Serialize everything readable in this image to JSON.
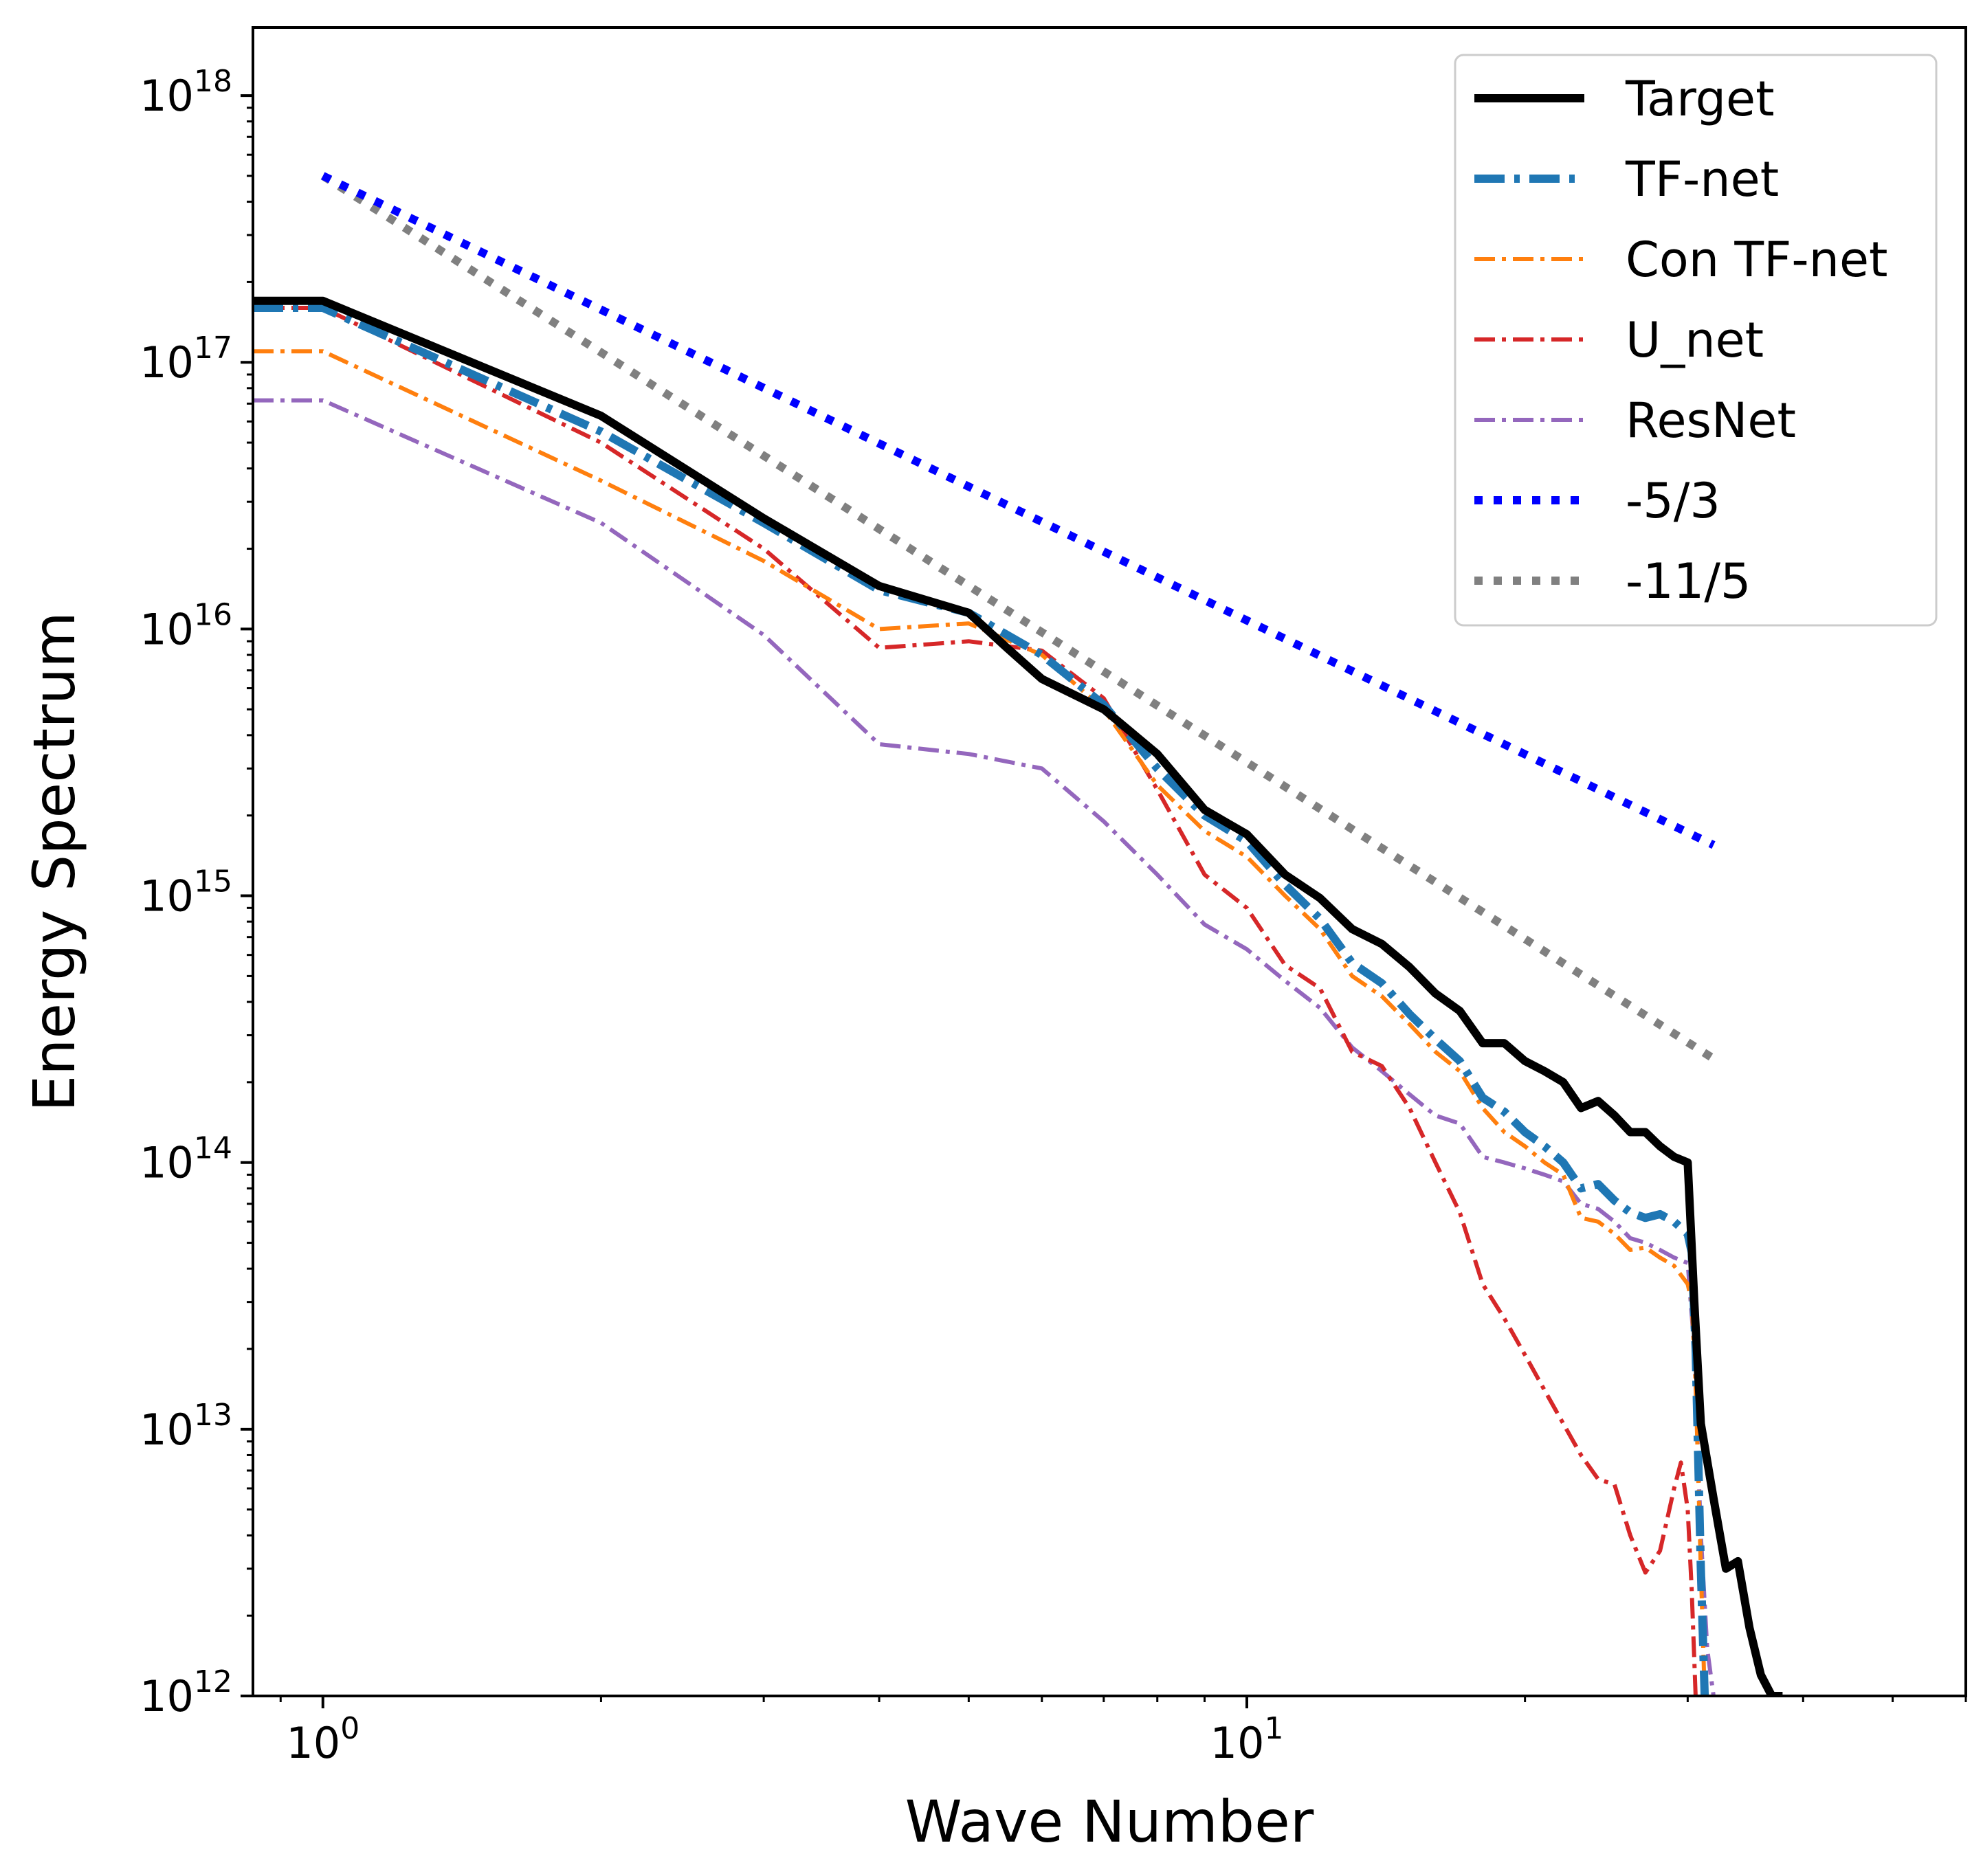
{
  "chart_data": {
    "type": "line",
    "title": "",
    "xlabel": "Wave Number",
    "ylabel": "Energy Spectrum",
    "xscale": "log",
    "yscale": "log",
    "xlim": [
      0.84,
      60
    ],
    "ylim": [
      1000000000000.0,
      1.8e+18
    ],
    "x_ticks": [
      {
        "value": 1,
        "base": "10",
        "exp": "0"
      },
      {
        "value": 10,
        "base": "10",
        "exp": "1"
      }
    ],
    "y_ticks": [
      {
        "value": 1000000000000.0,
        "base": "10",
        "exp": "12"
      },
      {
        "value": 10000000000000.0,
        "base": "10",
        "exp": "13"
      },
      {
        "value": 100000000000000.0,
        "base": "10",
        "exp": "14"
      },
      {
        "value": 1000000000000000.0,
        "base": "10",
        "exp": "15"
      },
      {
        "value": 1e+16,
        "base": "10",
        "exp": "16"
      },
      {
        "value": 1e+17,
        "base": "10",
        "exp": "17"
      },
      {
        "value": 1e+18,
        "base": "10",
        "exp": "18"
      }
    ],
    "legend_position": "top-right",
    "series": [
      {
        "name": "Target",
        "color": "#000000",
        "style": "solid",
        "weight": "thick",
        "x": [
          0.84,
          1,
          2,
          3,
          4,
          5,
          5.5,
          6,
          7,
          8,
          9,
          10,
          11,
          12,
          13,
          14,
          15,
          16,
          17,
          18,
          19,
          20,
          21,
          22,
          23,
          24,
          25,
          26,
          27,
          28,
          29,
          30,
          30.5,
          31,
          32,
          33,
          34,
          35,
          36,
          37,
          38
        ],
        "y": [
          1.7e+17,
          1.7e+17,
          6.3e+16,
          2.6e+16,
          1.45e+16,
          1.15e+16,
          8500000000000000.0,
          6500000000000000.0,
          5000000000000000.0,
          3400000000000000.0,
          2100000000000000.0,
          1700000000000000.0,
          1200000000000000.0,
          980000000000000.0,
          750000000000000.0,
          660000000000000.0,
          540000000000000.0,
          430000000000000.0,
          370000000000000.0,
          280000000000000.0,
          280000000000000.0,
          240000000000000.0,
          220000000000000.0,
          200000000000000.0,
          160000000000000.0,
          170000000000000.0,
          150000000000000.0,
          130000000000000.0,
          130000000000000.0,
          115000000000000.0,
          105000000000000.0,
          100000000000000.0,
          30000000000000.0,
          10500000000000.0,
          5500000000000.0,
          3000000000000.0,
          3200000000000.0,
          1800000000000.0,
          1200000000000.0,
          1000000000000.0,
          1000000000000.0
        ]
      },
      {
        "name": "TF-net",
        "color": "#1f77b4",
        "style": "dashdot",
        "weight": "thick",
        "x": [
          0.84,
          1,
          2,
          3,
          4,
          5,
          6,
          7,
          8,
          9,
          10,
          11,
          12,
          13,
          14,
          15,
          16,
          17,
          18,
          19,
          20,
          21,
          22,
          23,
          24,
          25,
          26,
          27,
          28,
          29,
          30,
          30.3,
          30.6,
          31,
          31.3
        ],
        "y": [
          1.6e+17,
          1.6e+17,
          5.5e+16,
          2.5e+16,
          1.4e+16,
          1.15e+16,
          8000000000000000.0,
          5200000000000000.0,
          3000000000000000.0,
          2000000000000000.0,
          1600000000000000.0,
          1100000000000000.0,
          820000000000000.0,
          560000000000000.0,
          470000000000000.0,
          360000000000000.0,
          290000000000000.0,
          240000000000000.0,
          175000000000000.0,
          155000000000000.0,
          130000000000000.0,
          115000000000000.0,
          100000000000000.0,
          80000000000000.0,
          83000000000000.0,
          72000000000000.0,
          65000000000000.0,
          62000000000000.0,
          64000000000000.0,
          60000000000000.0,
          54000000000000.0,
          46000000000000.0,
          20000000000000.0,
          3000000000000.0,
          1000000000000.0
        ]
      },
      {
        "name": "Con TF-net",
        "color": "#ff7f0e",
        "style": "dashdot",
        "weight": "thin",
        "x": [
          0.84,
          1,
          2,
          3,
          4,
          5,
          6,
          7,
          8,
          9,
          10,
          11,
          12,
          13,
          14,
          15,
          16,
          17,
          18,
          19,
          20,
          21,
          22,
          23,
          24,
          25,
          26,
          27,
          28,
          29,
          30,
          30.3,
          30.6,
          31,
          31.3
        ],
        "y": [
          1.1e+17,
          1.1e+17,
          3.6e+16,
          1.8e+16,
          1e+16,
          1.05e+16,
          8000000000000000.0,
          5000000000000000.0,
          2600000000000000.0,
          1750000000000000.0,
          1400000000000000.0,
          1000000000000000.0,
          750000000000000.0,
          500000000000000.0,
          420000000000000.0,
          330000000000000.0,
          260000000000000.0,
          220000000000000.0,
          160000000000000.0,
          130000000000000.0,
          115000000000000.0,
          100000000000000.0,
          90000000000000.0,
          62000000000000.0,
          60000000000000.0,
          54000000000000.0,
          47000000000000.0,
          48000000000000.0,
          44000000000000.0,
          41000000000000.0,
          35000000000000.0,
          30000000000000.0,
          15000000000000.0,
          3000000000000.0,
          1000000000000.0
        ]
      },
      {
        "name": "U_net",
        "color": "#d62728",
        "style": "dashdot",
        "weight": "thin",
        "x": [
          0.84,
          1,
          2,
          3,
          4,
          5,
          6,
          7,
          8,
          9,
          10,
          11,
          12,
          13,
          14,
          15,
          16,
          17,
          18,
          19,
          20,
          21,
          22,
          23,
          24,
          25,
          26,
          27,
          28,
          29,
          29.5,
          30,
          30.3,
          30.6
        ],
        "y": [
          1.6e+17,
          1.6e+17,
          5e+16,
          2e+16,
          8500000000000000.0,
          9000000000000000.0,
          8300000000000000.0,
          5500000000000000.0,
          2500000000000000.0,
          1200000000000000.0,
          900000000000000.0,
          550000000000000.0,
          450000000000000.0,
          260000000000000.0,
          230000000000000.0,
          160000000000000.0,
          100000000000000.0,
          65000000000000.0,
          35000000000000.0,
          26000000000000.0,
          19000000000000.0,
          14000000000000.0,
          10500000000000.0,
          8000000000000.0,
          6500000000000.0,
          6200000000000.0,
          4000000000000.0,
          2900000000000.0,
          3500000000000.0,
          6000000000000.0,
          7500000000000.0,
          5000000000000.0,
          2500000000000.0,
          1000000000000.0
        ]
      },
      {
        "name": "ResNet",
        "color": "#9467bd",
        "style": "dashdot",
        "weight": "thin",
        "x": [
          0.84,
          1,
          2,
          3,
          4,
          5,
          6,
          7,
          8,
          9,
          10,
          11,
          12,
          13,
          14,
          15,
          16,
          17,
          18,
          19,
          20,
          21,
          22,
          23,
          24,
          25,
          26,
          27,
          28,
          29,
          30,
          30.5,
          31,
          31.5,
          32
        ],
        "y": [
          7.2e+16,
          7.2e+16,
          2.5e+16,
          9500000000000000.0,
          3700000000000000.0,
          3400000000000000.0,
          3000000000000000.0,
          1900000000000000.0,
          1200000000000000.0,
          780000000000000.0,
          630000000000000.0,
          480000000000000.0,
          380000000000000.0,
          270000000000000.0,
          220000000000000.0,
          180000000000000.0,
          150000000000000.0,
          140000000000000.0,
          105000000000000.0,
          100000000000000.0,
          95000000000000.0,
          90000000000000.0,
          85000000000000.0,
          70000000000000.0,
          67000000000000.0,
          60000000000000.0,
          52000000000000.0,
          50000000000000.0,
          47000000000000.0,
          44000000000000.0,
          42000000000000.0,
          20000000000000.0,
          4000000000000.0,
          1500000000000.0,
          1000000000000.0
        ]
      },
      {
        "name": "-5/3",
        "color": "#0000ff",
        "style": "dotted",
        "weight": "thick",
        "x": [
          1,
          32
        ],
        "y": [
          5e+17,
          1550000000000000.0
        ]
      },
      {
        "name": "-11/5",
        "color": "#808080",
        "style": "dotted",
        "weight": "thick",
        "x": [
          1,
          32
        ],
        "y": [
          5e+17,
          245000000000000.0
        ]
      }
    ]
  }
}
